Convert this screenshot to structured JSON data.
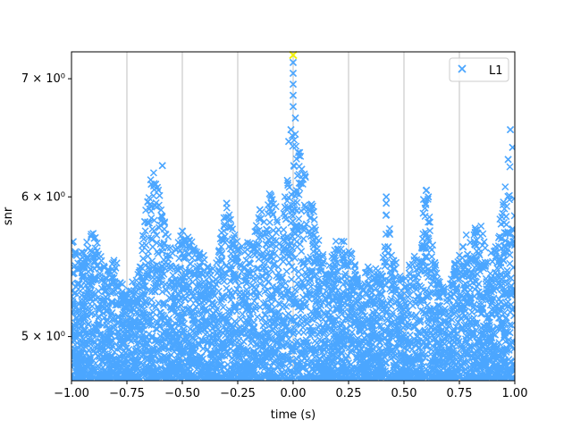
{
  "chart_data": {
    "type": "scatter",
    "title": "",
    "xlabel": "time (s)",
    "ylabel": "snr",
    "xlim": [
      -1.0,
      1.0
    ],
    "ylim": [
      4.72,
      7.25
    ],
    "yscale": "log",
    "grid": "vertical only",
    "legend_position": "top-right",
    "colors": {
      "series": "#4ba6ff",
      "highlight": "#f2f20a",
      "grid": "#b0b0b0"
    },
    "x_ticks": [
      -1.0,
      -0.75,
      -0.5,
      -0.25,
      0.0,
      0.25,
      0.5,
      0.75,
      1.0
    ],
    "x_tick_labels": [
      "−1.00",
      "−0.75",
      "−0.50",
      "−0.25",
      "0.00",
      "0.25",
      "0.50",
      "0.75",
      "1.00"
    ],
    "y_ticks": [
      5,
      6,
      7
    ],
    "y_tick_labels": [
      "5 × 10⁰",
      "6 × 10⁰",
      "7 × 10⁰"
    ],
    "series": [
      {
        "name": "L1",
        "marker": "x",
        "envelope_x": [
          -1.0,
          -0.95,
          -0.9,
          -0.85,
          -0.8,
          -0.75,
          -0.7,
          -0.65,
          -0.62,
          -0.6,
          -0.55,
          -0.5,
          -0.45,
          -0.4,
          -0.35,
          -0.3,
          -0.25,
          -0.2,
          -0.15,
          -0.1,
          -0.05,
          0.0,
          0.05,
          0.1,
          0.15,
          0.2,
          0.25,
          0.3,
          0.35,
          0.4,
          0.42,
          0.45,
          0.5,
          0.55,
          0.6,
          0.65,
          0.7,
          0.75,
          0.8,
          0.85,
          0.9,
          0.95,
          0.98,
          1.0
        ],
        "envelope_y": [
          5.7,
          5.6,
          5.75,
          5.5,
          5.55,
          5.3,
          5.45,
          6.1,
          6.25,
          6.0,
          5.6,
          5.75,
          5.65,
          5.55,
          5.5,
          5.95,
          5.7,
          5.65,
          5.9,
          6.05,
          5.8,
          6.6,
          6.2,
          5.85,
          5.45,
          5.7,
          5.65,
          5.4,
          5.5,
          5.45,
          6.0,
          5.55,
          5.4,
          5.6,
          6.1,
          5.4,
          5.3,
          5.65,
          5.75,
          5.8,
          5.55,
          6.0,
          6.35,
          5.95
        ],
        "outliers": [
          {
            "x": 0.0,
            "y": 7.15
          },
          {
            "x": 0.0,
            "y": 7.05
          },
          {
            "x": 0.0,
            "y": 6.95
          },
          {
            "x": 0.0,
            "y": 6.85
          },
          {
            "x": 0.0,
            "y": 6.75
          },
          {
            "x": -0.01,
            "y": 6.55
          },
          {
            "x": 0.01,
            "y": 6.65
          },
          {
            "x": -0.02,
            "y": 6.45
          },
          {
            "x": 0.98,
            "y": 6.55
          },
          {
            "x": 0.99,
            "y": 6.4
          },
          {
            "x": 0.97,
            "y": 6.3
          },
          {
            "x": -0.59,
            "y": 6.25
          },
          {
            "x": -0.64,
            "y": 6.1
          },
          {
            "x": -0.62,
            "y": 6.1
          },
          {
            "x": 0.6,
            "y": 6.05
          },
          {
            "x": 0.61,
            "y": 6.0
          },
          {
            "x": 0.42,
            "y": 6.0
          },
          {
            "x": 0.42,
            "y": 5.95
          },
          {
            "x": -0.3,
            "y": 5.95
          },
          {
            "x": -0.15,
            "y": 5.9
          }
        ],
        "peak": {
          "x": 0.0,
          "y": 7.22
        }
      }
    ]
  }
}
